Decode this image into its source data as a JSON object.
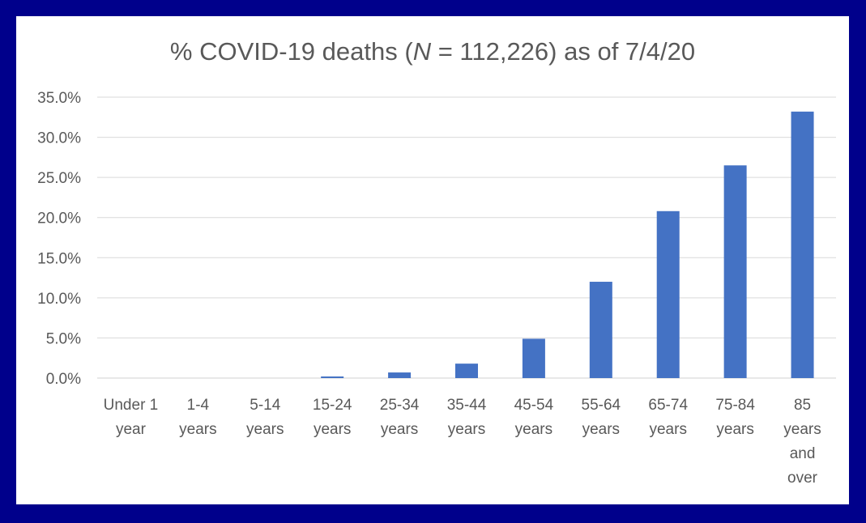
{
  "chart_data": {
    "type": "bar",
    "title_parts": [
      "% COVID-19 deaths (",
      "N",
      " = 112,226) as of 7/4/20"
    ],
    "xlabel": "",
    "ylabel": "",
    "categories": [
      [
        "Under 1",
        "year"
      ],
      [
        "1-4",
        "years"
      ],
      [
        "5-14",
        "years"
      ],
      [
        "15-24",
        "years"
      ],
      [
        "25-34",
        "years"
      ],
      [
        "35-44",
        "years"
      ],
      [
        "45-54",
        "years"
      ],
      [
        "55-64",
        "years"
      ],
      [
        "65-74",
        "years"
      ],
      [
        "75-84",
        "years"
      ],
      [
        "85",
        "years",
        "and",
        "over"
      ]
    ],
    "series": [
      {
        "values": [
          0.0,
          0.0,
          0.0,
          0.2,
          0.7,
          1.8,
          4.9,
          12.0,
          20.8,
          26.5,
          33.2
        ]
      }
    ],
    "ylim": [
      0,
      35
    ],
    "yticks": [
      "0.0%",
      "5.0%",
      "10.0%",
      "15.0%",
      "20.0%",
      "25.0%",
      "30.0%",
      "35.0%"
    ],
    "ytick_values": [
      0,
      5,
      10,
      15,
      20,
      25,
      30,
      35
    ],
    "grid": true,
    "legend": "none",
    "colors": {
      "bar": "#4472C4",
      "frame": "#00008B",
      "text": "#595959",
      "grid": "#d9d9d9"
    }
  }
}
